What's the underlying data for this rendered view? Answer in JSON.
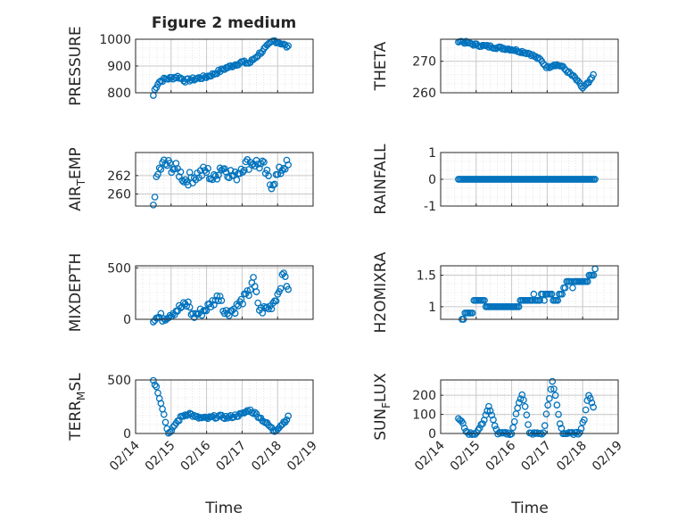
{
  "figure_title": "Figure 2 medium",
  "xlabel": "Time",
  "chart_data": [
    {
      "id": "pressure",
      "type": "scatter",
      "ylabel": "PRESSURE",
      "ylim": [
        800,
        1000
      ],
      "yticks": [
        800,
        900,
        1000
      ],
      "xlim": [
        0,
        5
      ],
      "xticks": [
        "02/14",
        "02/15",
        "02/16",
        "02/17",
        "02/18",
        "02/19"
      ],
      "x_tick_labels_shown": false,
      "anchors": [
        [
          0.5,
          790
        ],
        [
          0.55,
          815
        ],
        [
          0.65,
          840
        ],
        [
          0.8,
          850
        ],
        [
          1.0,
          855
        ],
        [
          1.2,
          860
        ],
        [
          1.4,
          845
        ],
        [
          1.6,
          850
        ],
        [
          1.8,
          855
        ],
        [
          2.0,
          860
        ],
        [
          2.2,
          870
        ],
        [
          2.5,
          890
        ],
        [
          2.8,
          905
        ],
        [
          3.0,
          915
        ],
        [
          3.2,
          910
        ],
        [
          3.4,
          935
        ],
        [
          3.6,
          960
        ],
        [
          3.8,
          985
        ],
        [
          3.9,
          995
        ],
        [
          4.1,
          985
        ],
        [
          4.3,
          970
        ]
      ],
      "n_points": 90,
      "noise": 6
    },
    {
      "id": "theta",
      "type": "scatter",
      "ylabel": "THETA",
      "ylim": [
        260,
        277
      ],
      "yticks": [
        260,
        270
      ],
      "xlim": [
        0,
        5
      ],
      "xticks": [
        "02/14",
        "02/15",
        "02/16",
        "02/17",
        "02/18",
        "02/19"
      ],
      "x_tick_labels_shown": false,
      "anchors": [
        [
          0.5,
          276.5
        ],
        [
          1.0,
          275.2
        ],
        [
          1.5,
          274.5
        ],
        [
          2.0,
          273.8
        ],
        [
          2.5,
          272.5
        ],
        [
          2.8,
          270.5
        ],
        [
          3.0,
          268.0
        ],
        [
          3.2,
          269.0
        ],
        [
          3.4,
          268.5
        ],
        [
          3.6,
          266.5
        ],
        [
          3.8,
          264.5
        ],
        [
          4.0,
          261.5
        ],
        [
          4.2,
          263.5
        ],
        [
          4.3,
          265.5
        ]
      ],
      "n_points": 90,
      "noise": 0.4
    },
    {
      "id": "air_temp",
      "type": "scatter",
      "ylabel_main": "AIR",
      "ylabel_sub": "T",
      "ylabel_rest": "EMP",
      "ylim": [
        258.7,
        264.5
      ],
      "yticks": [
        260,
        262
      ],
      "xlim": [
        0,
        5
      ],
      "xticks": [
        "02/14",
        "02/15",
        "02/16",
        "02/17",
        "02/18",
        "02/19"
      ],
      "x_tick_labels_shown": false,
      "anchors": [
        [
          0.5,
          258.9
        ],
        [
          0.55,
          260.5
        ],
        [
          0.65,
          262.5
        ],
        [
          0.8,
          263.3
        ],
        [
          1.0,
          263.0
        ],
        [
          1.2,
          262.5
        ],
        [
          1.4,
          261.5
        ],
        [
          1.7,
          262.0
        ],
        [
          2.0,
          262.5
        ],
        [
          2.2,
          261.5
        ],
        [
          2.4,
          263.0
        ],
        [
          2.6,
          262.5
        ],
        [
          2.8,
          261.8
        ],
        [
          3.0,
          263.0
        ],
        [
          3.3,
          263.5
        ],
        [
          3.6,
          263.0
        ],
        [
          3.8,
          261.0
        ],
        [
          4.0,
          262.0
        ],
        [
          4.2,
          263.2
        ],
        [
          4.3,
          263.0
        ]
      ],
      "n_points": 90,
      "noise": 0.7
    },
    {
      "id": "rainfall",
      "type": "scatter",
      "ylabel": "RAINFALL",
      "ylim": [
        -1,
        1
      ],
      "yticks": [
        -1,
        0,
        1
      ],
      "xlim": [
        0,
        5
      ],
      "xticks": [
        "02/14",
        "02/15",
        "02/16",
        "02/17",
        "02/18",
        "02/19"
      ],
      "x_tick_labels_shown": false,
      "anchors": [
        [
          0.5,
          0
        ],
        [
          4.35,
          0
        ]
      ],
      "n_points": 90,
      "noise": 0
    },
    {
      "id": "mixdepth",
      "type": "scatter",
      "ylabel": "MIXDEPTH",
      "ylim": [
        0,
        520
      ],
      "yticks": [
        0,
        500
      ],
      "xlim": [
        0,
        5
      ],
      "xticks": [
        "02/14",
        "02/15",
        "02/16",
        "02/17",
        "02/18",
        "02/19"
      ],
      "x_tick_labels_shown": false,
      "anchors": [
        [
          0.5,
          10
        ],
        [
          0.8,
          20
        ],
        [
          1.0,
          60
        ],
        [
          1.3,
          120
        ],
        [
          1.5,
          150
        ],
        [
          1.6,
          30
        ],
        [
          1.9,
          80
        ],
        [
          2.1,
          140
        ],
        [
          2.4,
          240
        ],
        [
          2.5,
          60
        ],
        [
          2.8,
          100
        ],
        [
          3.0,
          180
        ],
        [
          3.2,
          260
        ],
        [
          3.3,
          400
        ],
        [
          3.5,
          80
        ],
        [
          3.7,
          110
        ],
        [
          3.8,
          120
        ],
        [
          4.0,
          240
        ],
        [
          4.1,
          360
        ],
        [
          4.2,
          470
        ],
        [
          4.3,
          250
        ]
      ],
      "n_points": 90,
      "noise": 45
    },
    {
      "id": "h2omixra",
      "type": "scatter",
      "ylabel": "H2OMIXRA",
      "ylim": [
        0.8,
        1.65
      ],
      "yticks": [
        1,
        1.5
      ],
      "xlim": [
        0,
        5
      ],
      "xticks": [
        "02/14",
        "02/15",
        "02/16",
        "02/17",
        "02/18",
        "02/19"
      ],
      "x_tick_labels_shown": false,
      "anchors": [
        [
          0.6,
          0.8
        ],
        [
          0.8,
          0.9
        ],
        [
          1.0,
          1.1
        ],
        [
          1.2,
          1.1
        ],
        [
          1.5,
          1.0
        ],
        [
          2.0,
          1.0
        ],
        [
          2.5,
          1.1
        ],
        [
          3.0,
          1.2
        ],
        [
          3.3,
          1.1
        ],
        [
          3.5,
          1.3
        ],
        [
          3.8,
          1.4
        ],
        [
          4.0,
          1.4
        ],
        [
          4.2,
          1.5
        ],
        [
          4.35,
          1.6
        ]
      ],
      "n_points": 90,
      "noise": 0.05,
      "quantize": 0.1
    },
    {
      "id": "terr_msl",
      "type": "scatter",
      "ylabel_main": "TERR",
      "ylabel_sub": "M",
      "ylabel_rest": "SL",
      "ylim": [
        0,
        500
      ],
      "yticks": [
        0,
        500
      ],
      "xlim": [
        0,
        5
      ],
      "xticks": [
        "02/14",
        "02/15",
        "02/16",
        "02/17",
        "02/18",
        "02/19"
      ],
      "x_tick_labels_shown": true,
      "anchors": [
        [
          0.5,
          500
        ],
        [
          0.6,
          420
        ],
        [
          0.75,
          250
        ],
        [
          0.9,
          20
        ],
        [
          1.0,
          5
        ],
        [
          1.1,
          80
        ],
        [
          1.3,
          160
        ],
        [
          1.5,
          190
        ],
        [
          1.7,
          150
        ],
        [
          2.0,
          140
        ],
        [
          2.3,
          160
        ],
        [
          2.6,
          150
        ],
        [
          3.0,
          180
        ],
        [
          3.2,
          220
        ],
        [
          3.4,
          180
        ],
        [
          3.6,
          120
        ],
        [
          3.8,
          60
        ],
        [
          3.9,
          20
        ],
        [
          4.1,
          80
        ],
        [
          4.3,
          150
        ]
      ],
      "n_points": 90,
      "noise": 15
    },
    {
      "id": "sun_flux",
      "type": "scatter",
      "ylabel_main": "SUN",
      "ylabel_sub": "F",
      "ylabel_rest": "LUX",
      "ylim": [
        0,
        280
      ],
      "yticks": [
        0,
        100,
        200
      ],
      "xlim": [
        0,
        5
      ],
      "xticks": [
        "02/14",
        "02/15",
        "02/16",
        "02/17",
        "02/18",
        "02/19"
      ],
      "x_tick_labels_shown": true,
      "anchors": [
        [
          0.5,
          80
        ],
        [
          0.6,
          60
        ],
        [
          0.75,
          0
        ],
        [
          1.0,
          0
        ],
        [
          1.2,
          60
        ],
        [
          1.35,
          140
        ],
        [
          1.5,
          60
        ],
        [
          1.6,
          0
        ],
        [
          2.0,
          0
        ],
        [
          2.2,
          160
        ],
        [
          2.3,
          210
        ],
        [
          2.4,
          120
        ],
        [
          2.5,
          0
        ],
        [
          2.9,
          0
        ],
        [
          3.0,
          130
        ],
        [
          3.15,
          270
        ],
        [
          3.25,
          180
        ],
        [
          3.35,
          60
        ],
        [
          3.45,
          0
        ],
        [
          3.9,
          0
        ],
        [
          4.05,
          80
        ],
        [
          4.15,
          200
        ],
        [
          4.25,
          170
        ],
        [
          4.3,
          140
        ]
      ],
      "n_points": 90,
      "noise": 6
    }
  ]
}
